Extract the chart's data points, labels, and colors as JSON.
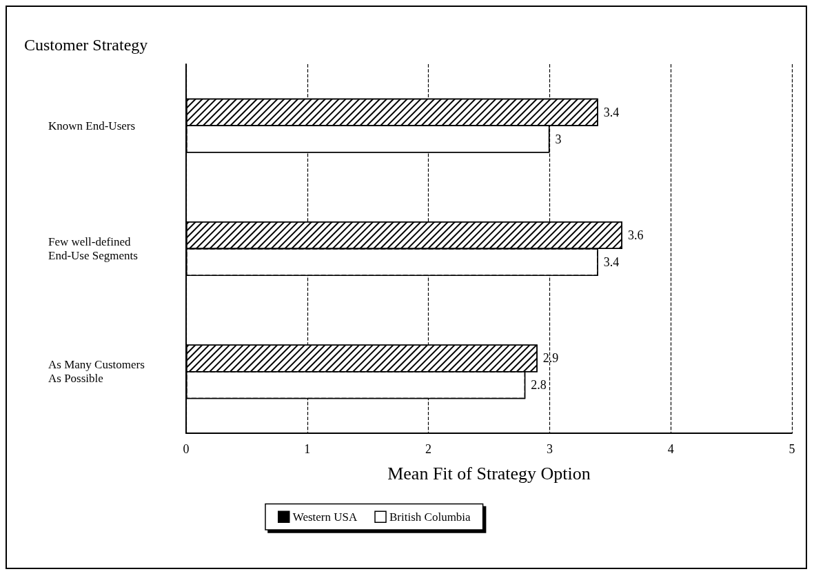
{
  "chart_data": {
    "type": "bar",
    "orientation": "horizontal",
    "title": "Customer Strategy",
    "xlabel": "Mean Fit of Strategy Option",
    "categories": [
      "Known End-Users",
      "Few well-defined\nEnd-Use Segments",
      "As Many Customers\nAs Possible"
    ],
    "series": [
      {
        "name": "Western USA",
        "color": "#000000",
        "values": [
          3.4,
          3.6,
          2.9
        ]
      },
      {
        "name": "British Columbia",
        "color": "#ffffff",
        "values": [
          3,
          3.4,
          2.8
        ]
      }
    ],
    "xlim": [
      0,
      5
    ],
    "xticks": [
      0,
      1,
      2,
      3,
      4,
      5
    ],
    "grid": "x",
    "legend": "bottom",
    "data_labels": true
  }
}
